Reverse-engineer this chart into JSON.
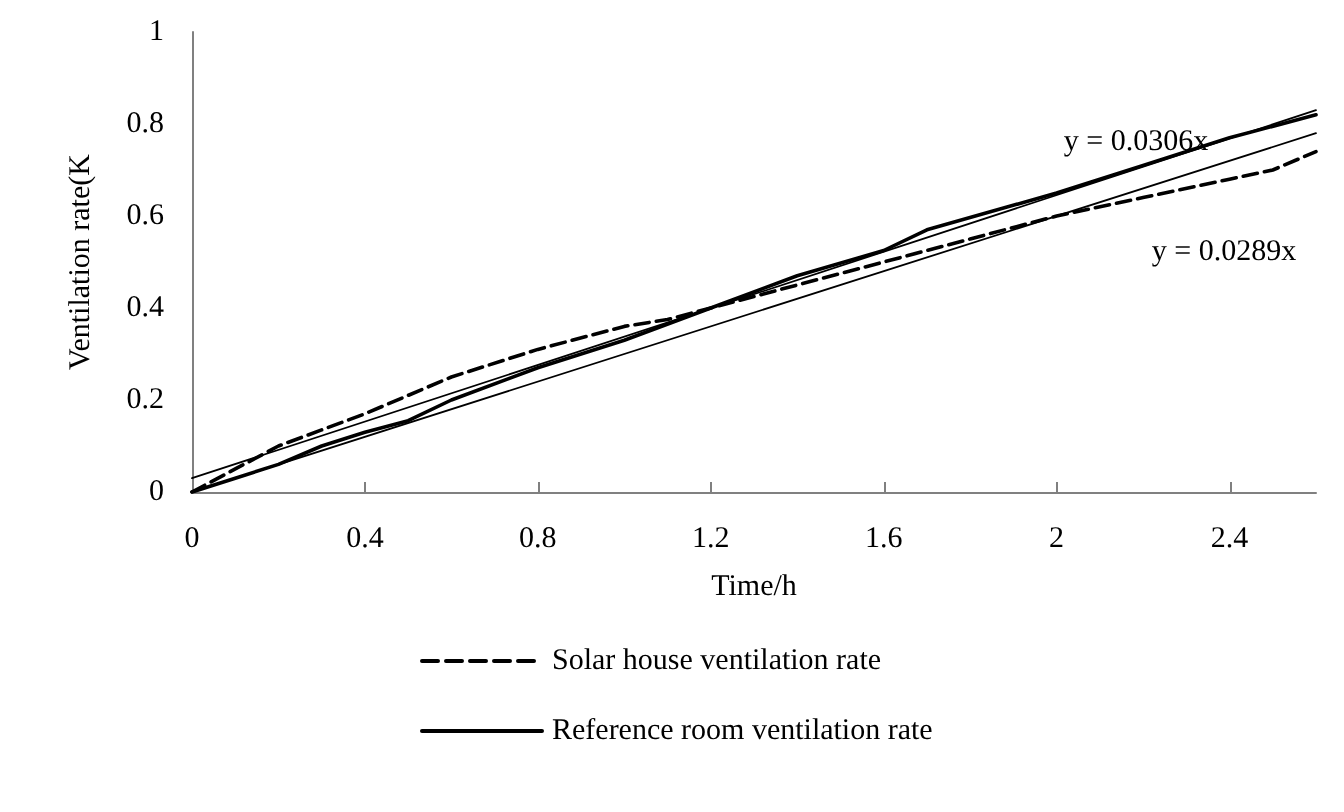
{
  "chart_data": {
    "type": "line",
    "xlabel": "Time/h",
    "ylabel": "Ventilation rate(K",
    "xlim": [
      0,
      2.6
    ],
    "ylim": [
      0,
      1
    ],
    "xticks": [
      0,
      0.4,
      0.8,
      1.2,
      1.6,
      2,
      2.4
    ],
    "yticks": [
      0,
      0.2,
      0.4,
      0.6,
      0.8,
      1
    ],
    "grid": false,
    "legend": "bottom",
    "marker": "none",
    "series": [
      {
        "name": "Solar house ventilation rate",
        "color": "#000000",
        "line_style": "dashed",
        "x": [
          0,
          0.2,
          0.4,
          0.6,
          0.8,
          1.0,
          1.1,
          1.2,
          1.4,
          1.6,
          1.8,
          2.0,
          2.2,
          2.4,
          2.5,
          2.6
        ],
        "values": [
          0,
          0.1,
          0.17,
          0.25,
          0.31,
          0.36,
          0.375,
          0.4,
          0.45,
          0.5,
          0.55,
          0.6,
          0.64,
          0.68,
          0.7,
          0.74
        ]
      },
      {
        "name": "Reference room ventilation rate",
        "color": "#000000",
        "line_style": "solid",
        "x": [
          0,
          0.1,
          0.2,
          0.3,
          0.4,
          0.5,
          0.6,
          0.8,
          1.0,
          1.2,
          1.4,
          1.6,
          1.7,
          2.0,
          2.2,
          2.4,
          2.6
        ],
        "values": [
          0,
          0.03,
          0.06,
          0.1,
          0.13,
          0.155,
          0.2,
          0.27,
          0.33,
          0.4,
          0.47,
          0.525,
          0.57,
          0.65,
          0.71,
          0.77,
          0.82
        ]
      },
      {
        "type": "line",
        "color": "#000000",
        "line_style": "solid",
        "x": [
          0,
          2.6
        ],
        "values": [
          0.03,
          0.83
        ]
      },
      {
        "type": "line",
        "color": "#000000",
        "line_style": "solid",
        "x": [
          0,
          2.6
        ],
        "values": [
          0,
          0.78
        ]
      }
    ],
    "annotations": [
      "y = 0.0306x",
      "y = 0.0289x"
    ]
  }
}
